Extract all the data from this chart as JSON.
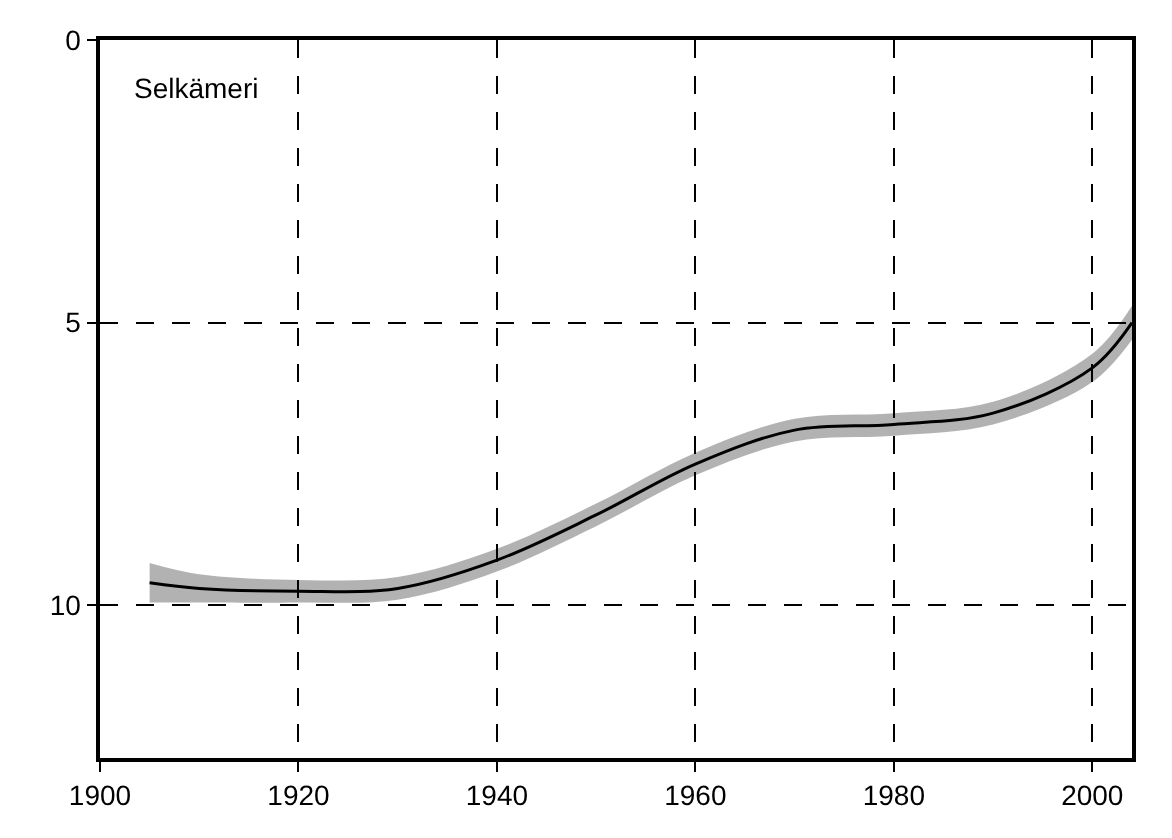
{
  "chart_data": {
    "type": "line",
    "x": [
      1905,
      1910,
      1920,
      1930,
      1940,
      1950,
      1960,
      1970,
      1980,
      1990,
      2000,
      2004
    ],
    "series": [
      {
        "color": "#000000",
        "values": [
          9.6,
          9.7,
          9.75,
          9.7,
          9.2,
          8.4,
          7.5,
          6.9,
          6.8,
          6.6,
          5.8,
          5.0
        ],
        "lower": [
          9.95,
          9.95,
          9.95,
          9.9,
          9.4,
          8.6,
          7.7,
          7.1,
          7.0,
          6.8,
          6.05,
          5.3
        ],
        "upper": [
          9.25,
          9.45,
          9.55,
          9.5,
          9.0,
          8.2,
          7.3,
          6.7,
          6.6,
          6.4,
          5.55,
          4.7
        ]
      }
    ],
    "annotations": [
      "Selkämeri"
    ],
    "xlim": [
      1900,
      2004
    ],
    "xticks": [
      1900,
      1920,
      1940,
      1960,
      1980,
      2000
    ],
    "ylim": [
      12.7,
      0
    ],
    "yticks": [
      0,
      5,
      10
    ],
    "grid": true,
    "line_style": "solid",
    "marker": "none"
  }
}
